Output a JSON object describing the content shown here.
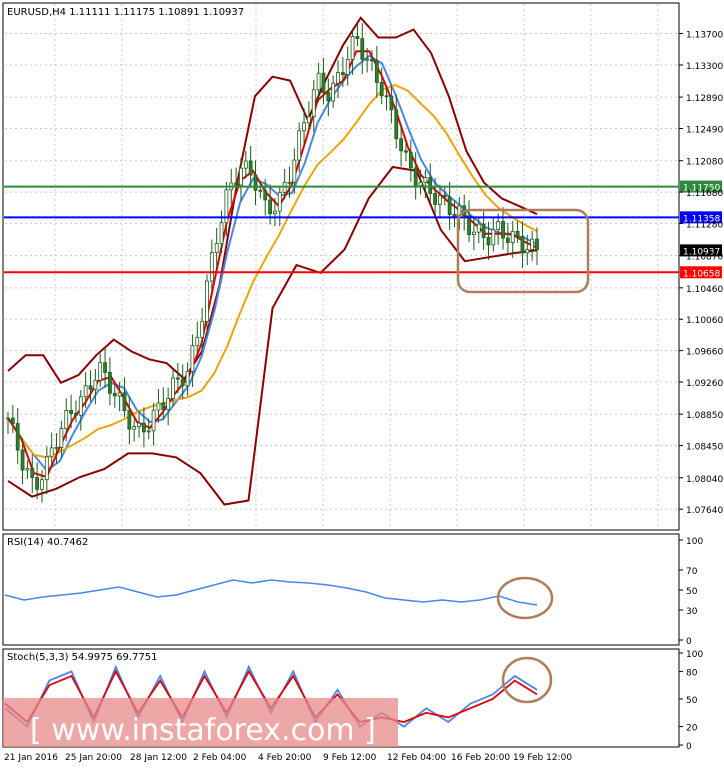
{
  "header": {
    "symbol_text": "EURUSD,H4  1.11111 1.11175 1.10891 1.10937"
  },
  "chart_data": [
    {
      "panel": "price",
      "type": "candlestick",
      "title": "EURUSD,H4  1.11111 1.11175 1.10891 1.10937",
      "ylim": [
        1.074,
        1.14
      ],
      "y_ticks": [
        "1.13700",
        "1.13300",
        "1.12890",
        "1.12490",
        "1.12080",
        "1.11680",
        "1.11280",
        "1.10870",
        "1.10460",
        "1.10060",
        "1.09660",
        "1.09260",
        "1.08850",
        "1.08450",
        "1.08040",
        "1.07640"
      ],
      "x_ticks": [
        "21 Jan 2016",
        "25 Jan 20:00",
        "28 Jan 12:00",
        "2 Feb 04:00",
        "4 Feb 20:00",
        "9 Feb 12:00",
        "12 Feb 04:00",
        "16 Feb 20:00",
        "19 Feb 12:00"
      ],
      "grid": true,
      "horizontal_lines": [
        {
          "label": "1.11750",
          "value": 1.1175,
          "color": "#2e8b3e"
        },
        {
          "label": "1.11358",
          "value": 1.11358,
          "color": "#0000ff"
        },
        {
          "label": "1.10658",
          "value": 1.10658,
          "color": "#ff0000"
        }
      ],
      "current_price": {
        "label": "1.10937",
        "value": 1.10937
      },
      "close_series": [
        1.088,
        1.083,
        1.079,
        1.082,
        1.0865,
        1.089,
        1.091,
        1.0945,
        1.092,
        1.089,
        1.086,
        1.0875,
        1.09,
        1.0925,
        1.094,
        1.101,
        1.11,
        1.1165,
        1.12,
        1.119,
        1.1145,
        1.1155,
        1.12,
        1.126,
        1.131,
        1.129,
        1.133,
        1.1365,
        1.133,
        1.13,
        1.125,
        1.12,
        1.118,
        1.1165,
        1.115,
        1.114,
        1.112,
        1.111,
        1.112,
        1.111,
        1.11,
        1.1094
      ],
      "upper_band": [
        1.094,
        1.096,
        1.096,
        1.0925,
        1.0935,
        1.096,
        1.098,
        1.0965,
        1.0955,
        1.095,
        1.093,
        1.0965,
        1.105,
        1.118,
        1.129,
        1.1315,
        1.131,
        1.126,
        1.131,
        1.1355,
        1.139,
        1.1365,
        1.1365,
        1.1375,
        1.1345,
        1.129,
        1.122,
        1.118,
        1.116,
        1.115,
        1.114
      ],
      "lower_band": [
        1.08,
        1.078,
        1.079,
        1.0805,
        1.0815,
        1.0835,
        1.0835,
        1.083,
        1.081,
        1.077,
        1.0775,
        1.102,
        1.1075,
        1.1065,
        1.1095,
        1.116,
        1.12,
        1.1195,
        1.112,
        1.108,
        1.1085,
        1.109,
        1.1094
      ],
      "annotations": [
        {
          "target": "consolidation-box"
        },
        {
          "target": "rsi-circle"
        },
        {
          "target": "stoch-circle"
        }
      ]
    },
    {
      "panel": "rsi",
      "type": "line",
      "title": "RSI(14) 40.7462",
      "ylim": [
        0,
        100
      ],
      "y_ticks": [
        "100",
        "70",
        "50",
        "30",
        "0"
      ],
      "values": [
        45,
        40,
        43,
        45,
        47,
        50,
        53,
        48,
        43,
        45,
        50,
        55,
        60,
        57,
        60,
        58,
        57,
        55,
        52,
        48,
        42,
        40,
        38,
        40,
        38,
        40,
        44,
        38,
        35
      ]
    },
    {
      "panel": "stoch",
      "type": "line",
      "title": "Stoch(5,3,3) 54.9975 69.7751",
      "ylim": [
        0,
        100
      ],
      "y_ticks": [
        "100",
        "80",
        "50",
        "20",
        "0"
      ],
      "series": [
        {
          "values": [
            40,
            20,
            70,
            80,
            25,
            85,
            30,
            75,
            25,
            80,
            30,
            85,
            35,
            80,
            25,
            60,
            20,
            35,
            20,
            40,
            25,
            45,
            55,
            75,
            60
          ]
        },
        {
          "values": [
            45,
            25,
            65,
            75,
            30,
            80,
            35,
            70,
            30,
            75,
            35,
            80,
            40,
            75,
            30,
            55,
            25,
            30,
            25,
            35,
            30,
            40,
            50,
            70,
            55
          ]
        }
      ]
    }
  ],
  "watermark": {
    "text": "[  www.instaforex.com ]"
  }
}
